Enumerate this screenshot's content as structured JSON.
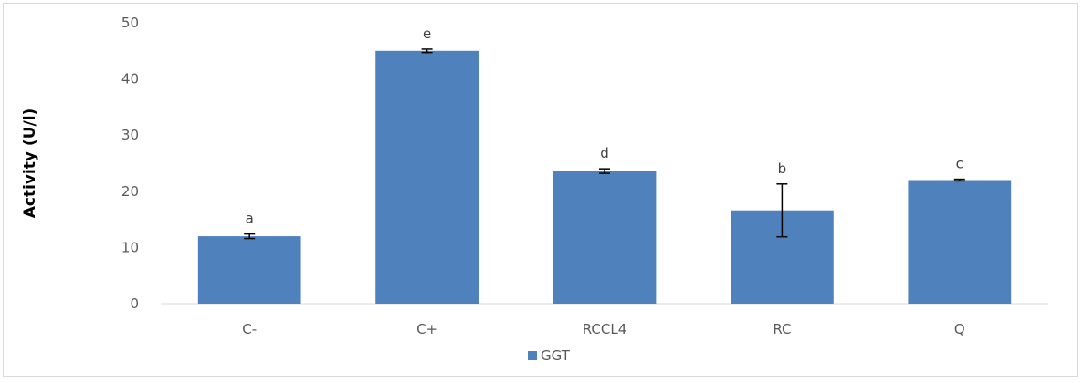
{
  "chart_data": {
    "type": "bar",
    "title": "",
    "xlabel": "",
    "ylabel": "Activity (U/l)",
    "ylim": [
      0,
      50
    ],
    "yticks": [
      0,
      10,
      20,
      30,
      40,
      50
    ],
    "grid": false,
    "legend_position": "bottom",
    "categories": [
      "C-",
      "C+",
      "RCCL4",
      "RC",
      "Q"
    ],
    "series": [
      {
        "name": "GGT",
        "color": "#4f81bd",
        "values": [
          12.0,
          45.0,
          23.6,
          16.6,
          22.0
        ],
        "errors": [
          0.4,
          0.3,
          0.4,
          4.7,
          0.15
        ]
      }
    ],
    "significance_labels": [
      "a",
      "e",
      "d",
      "b",
      "c"
    ]
  }
}
